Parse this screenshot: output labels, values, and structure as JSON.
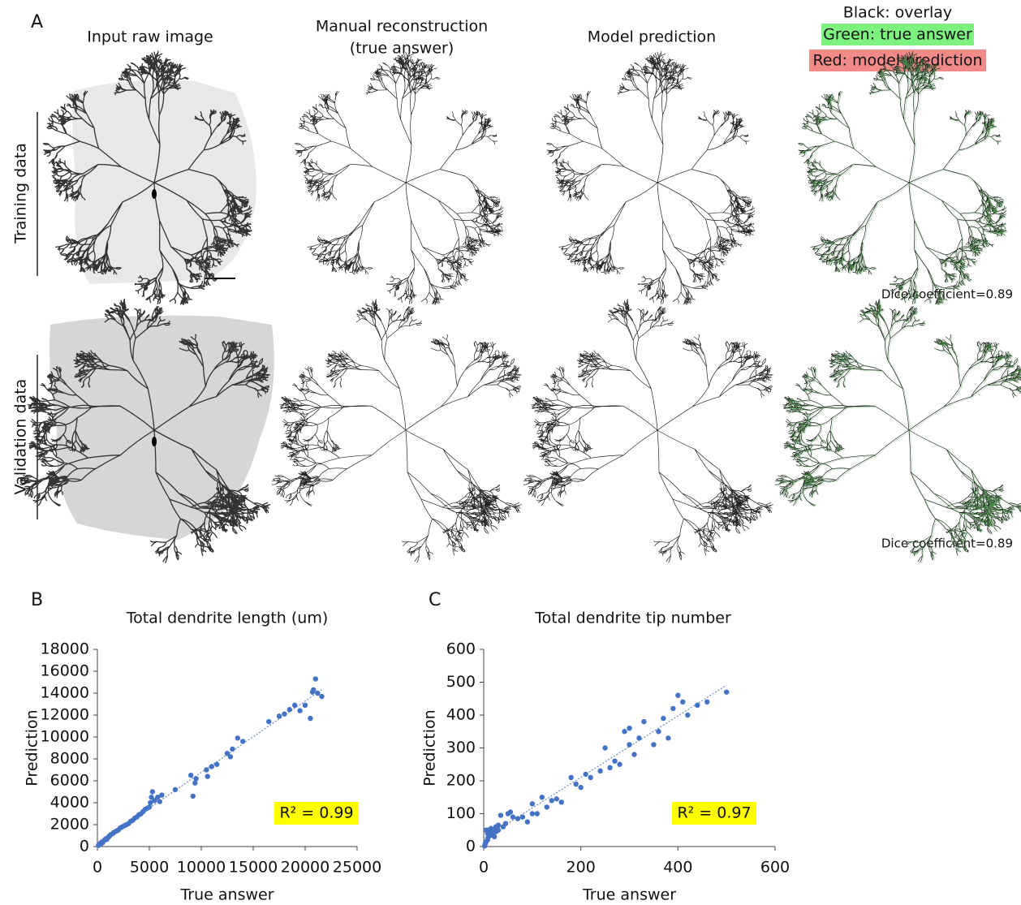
{
  "panel_a": {
    "label": "A",
    "column_titles": [
      [
        "Input raw image"
      ],
      [
        "Manual reconstruction",
        "(true answer)"
      ],
      [
        "Model prediction"
      ],
      [
        "Black: overlay"
      ]
    ],
    "legend": [
      "Green: true answer",
      "Red: model prediction"
    ],
    "row_labels": [
      "Training data",
      "Validation data"
    ],
    "dice": [
      "Dice coefficient=0.89",
      "Dice coefficient=0.89"
    ]
  },
  "chart_data": [
    {
      "type": "scatter",
      "panel": "B",
      "title": "Total dendrite length (um)",
      "x_label": "True answer",
      "y_label": "Prediction",
      "annotation": "R² = 0.99",
      "color": "#4472c4",
      "trendline": true,
      "xlim": [
        0,
        25000
      ],
      "ylim": [
        0,
        18000
      ],
      "xticks": [
        0,
        5000,
        10000,
        15000,
        20000,
        25000
      ],
      "yticks": [
        0,
        2000,
        4000,
        6000,
        8000,
        10000,
        12000,
        14000,
        16000,
        18000
      ],
      "x": [
        100,
        200,
        300,
        400,
        500,
        600,
        700,
        800,
        900,
        1000,
        1100,
        1200,
        1300,
        1500,
        1600,
        1800,
        2000,
        2200,
        2400,
        2600,
        2800,
        3000,
        3200,
        3400,
        3600,
        3800,
        4000,
        4200,
        4400,
        4600,
        4800,
        5000,
        5100,
        5200,
        5300,
        5500,
        5800,
        6000,
        6200,
        7500,
        9000,
        9200,
        9400,
        9500,
        10500,
        10600,
        11000,
        11500,
        12500,
        12800,
        13000,
        13500,
        14000,
        16500,
        17500,
        18000,
        18500,
        19000,
        19500,
        20000,
        20500,
        20700,
        21000,
        21200,
        21600,
        20800
      ],
      "y": [
        100,
        250,
        200,
        400,
        350,
        500,
        600,
        700,
        650,
        800,
        900,
        1000,
        1100,
        1200,
        1300,
        1400,
        1500,
        1700,
        1800,
        1900,
        2000,
        2100,
        2300,
        2400,
        2600,
        2700,
        2900,
        3000,
        3200,
        3400,
        3500,
        3600,
        4000,
        4500,
        5000,
        4200,
        4500,
        4100,
        4700,
        5200,
        6500,
        4600,
        5800,
        6200,
        7000,
        6400,
        7300,
        7500,
        8500,
        8200,
        8900,
        9900,
        9600,
        11400,
        11900,
        12100,
        12500,
        12900,
        12400,
        12900,
        11700,
        14100,
        15300,
        14000,
        13700,
        14300
      ]
    },
    {
      "type": "scatter",
      "panel": "C",
      "title": "Total dendrite tip number",
      "x_label": "True answer",
      "y_label": "Prediction",
      "annotation": "R² = 0.97",
      "color": "#4472c4",
      "trendline": true,
      "xlim": [
        0,
        600
      ],
      "ylim": [
        0,
        600
      ],
      "xticks": [
        0,
        200,
        400,
        600
      ],
      "yticks": [
        0,
        100,
        200,
        300,
        400,
        500,
        600
      ],
      "x": [
        2,
        3,
        5,
        5,
        8,
        8,
        10,
        10,
        12,
        15,
        15,
        18,
        20,
        22,
        25,
        25,
        28,
        30,
        30,
        35,
        40,
        45,
        50,
        55,
        60,
        70,
        80,
        90,
        100,
        100,
        110,
        120,
        130,
        140,
        150,
        160,
        180,
        190,
        200,
        210,
        220,
        240,
        250,
        260,
        270,
        280,
        290,
        300,
        300,
        310,
        320,
        330,
        350,
        360,
        370,
        380,
        390,
        400,
        410,
        420,
        440,
        460,
        500
      ],
      "y": [
        2,
        8,
        15,
        50,
        20,
        40,
        30,
        50,
        45,
        35,
        55,
        40,
        50,
        30,
        45,
        60,
        55,
        50,
        65,
        95,
        60,
        70,
        100,
        105,
        90,
        85,
        90,
        75,
        100,
        130,
        100,
        150,
        120,
        140,
        145,
        135,
        210,
        190,
        180,
        220,
        210,
        230,
        300,
        240,
        260,
        250,
        350,
        360,
        310,
        280,
        330,
        380,
        310,
        350,
        390,
        330,
        420,
        460,
        440,
        400,
        430,
        440,
        470
      ]
    }
  ]
}
